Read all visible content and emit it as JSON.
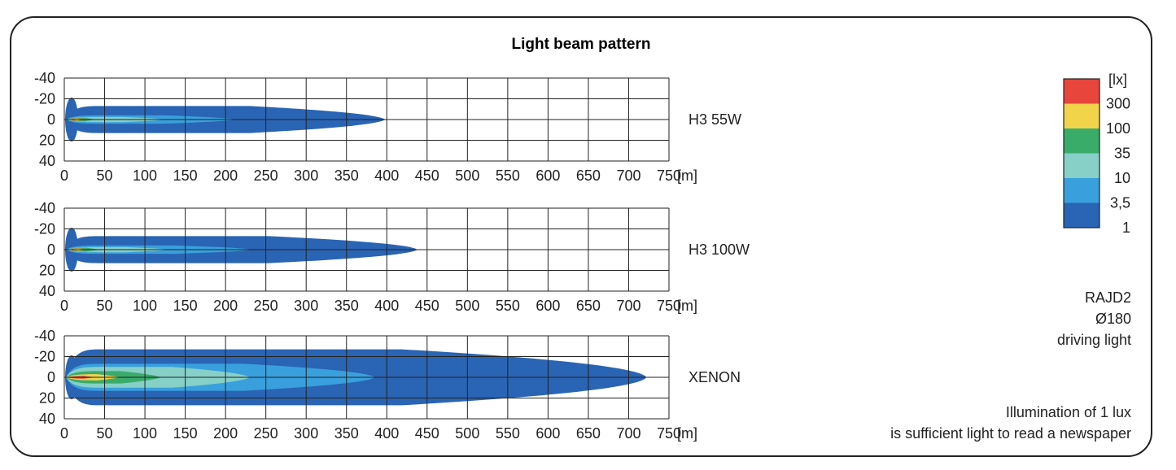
{
  "chart_data": {
    "type": "area",
    "title": "Light beam pattern",
    "x_unit": "[m]",
    "xlim": [
      0,
      750
    ],
    "ylim": [
      -40,
      40
    ],
    "x_ticks": [
      "0",
      "50",
      "100",
      "150",
      "200",
      "250",
      "300",
      "350",
      "400",
      "450",
      "500",
      "550",
      "600",
      "650",
      "700",
      "750"
    ],
    "y_ticks": [
      "-40",
      "-20",
      "0",
      "20",
      "40"
    ],
    "grid": true,
    "legend": {
      "unit": "[lx]",
      "entries": [
        {
          "label": "300",
          "color": "#e8453c"
        },
        {
          "label": "100",
          "color": "#f2d44a"
        },
        {
          "label": "35",
          "color": "#3aac6a"
        },
        {
          "label": "10",
          "color": "#86d0c8"
        },
        {
          "label": "3,5",
          "color": "#39a0dd"
        },
        {
          "label": "1",
          "color": "#2a64b4"
        }
      ]
    },
    "series": [
      {
        "name": "H3 55W",
        "bands": [
          {
            "lux": "1",
            "reach": 398,
            "half_width": 13
          },
          {
            "lux": "3,5",
            "reach": 212,
            "half_width": 4
          },
          {
            "lux": "10",
            "reach": 125,
            "half_width": 2.5
          },
          {
            "lux": "35",
            "reach": 40,
            "half_width": 2
          },
          {
            "lux": "100",
            "reach": 25,
            "half_width": 1.5
          },
          {
            "lux": "300",
            "reach": 18,
            "half_width": 1
          }
        ]
      },
      {
        "name": "H3 100W",
        "bands": [
          {
            "lux": "1",
            "reach": 438,
            "half_width": 13
          },
          {
            "lux": "3,5",
            "reach": 232,
            "half_width": 4
          },
          {
            "lux": "10",
            "reach": 130,
            "half_width": 2.5
          },
          {
            "lux": "35",
            "reach": 45,
            "half_width": 2
          },
          {
            "lux": "100",
            "reach": 28,
            "half_width": 1.5
          },
          {
            "lux": "300",
            "reach": 18,
            "half_width": 1
          }
        ]
      },
      {
        "name": "XENON",
        "bands": [
          {
            "lux": "1",
            "reach": 722,
            "half_width": 27
          },
          {
            "lux": "3,5",
            "reach": 385,
            "half_width": 13
          },
          {
            "lux": "10",
            "reach": 230,
            "half_width": 10
          },
          {
            "lux": "35",
            "reach": 120,
            "half_width": 6
          },
          {
            "lux": "100",
            "reach": 70,
            "half_width": 3
          },
          {
            "lux": "300",
            "reach": 40,
            "half_width": 1.5
          }
        ]
      }
    ]
  },
  "notes": {
    "model": "RAJD2",
    "diameter": "Ø180",
    "type": "driving light",
    "lux_note_1": "Illumination of 1 lux",
    "lux_note_2": "is sufficient light to read a newspaper"
  }
}
